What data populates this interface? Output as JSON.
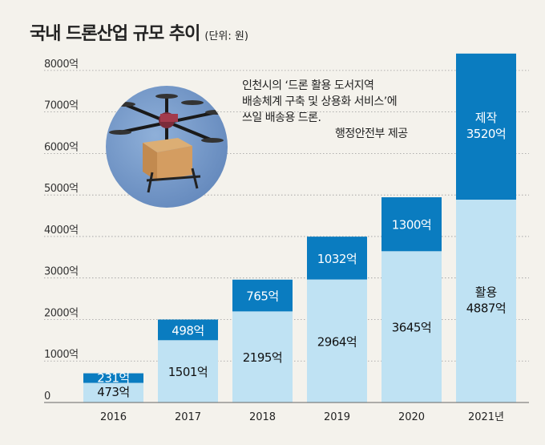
{
  "title": "국내 드론산업 규모 추이",
  "unit": "(단위: 원)",
  "caption": {
    "line1": "인천시의 ‘드론 활용 도서지역",
    "line2": "배송체계 구축 및 상용화 서비스’에",
    "line3": "쓰일 배송용 드론.",
    "credit": "행정안전부 제공"
  },
  "colors": {
    "background": "#f4f2ec",
    "usage": "#bfe2f3",
    "manufacture": "#0a7cc0",
    "sky": "#6f92c3",
    "box": "#c9955a"
  },
  "chart_data": {
    "type": "bar",
    "stacked": true,
    "categories": [
      "2016",
      "2017",
      "2018",
      "2019",
      "2020",
      "2021년"
    ],
    "ylim": [
      0,
      8500
    ],
    "yticks": [
      0,
      1000,
      2000,
      3000,
      4000,
      5000,
      6000,
      7000,
      8000
    ],
    "ytick_labels": [
      "0",
      "1000억",
      "2000억",
      "3000억",
      "4000억",
      "5000억",
      "6000억",
      "7000억",
      "8000억"
    ],
    "series": [
      {
        "name": "활용",
        "values": [
          473,
          1501,
          2195,
          2964,
          3645,
          4887
        ],
        "labels": [
          "473억",
          "1501억",
          "2195억",
          "2964억",
          "3645억",
          "4887억"
        ]
      },
      {
        "name": "제작",
        "values": [
          231,
          498,
          765,
          1032,
          1300,
          3520
        ],
        "labels": [
          "231억",
          "498억",
          "765억",
          "1032억",
          "1300억",
          "3520억"
        ]
      }
    ]
  }
}
